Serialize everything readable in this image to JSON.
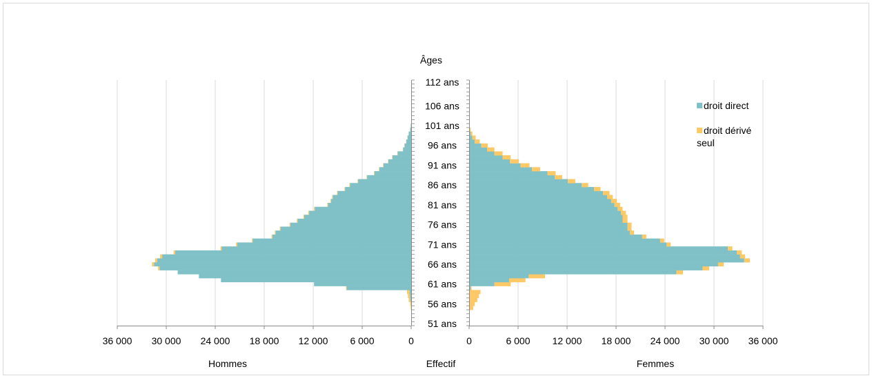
{
  "chart_data": {
    "type": "bar",
    "orientation": "horizontal",
    "subtype": "population-pyramid",
    "title": "Âges",
    "xlabel": "Effectif",
    "left_label": "Hommes",
    "right_label": "Femmes",
    "age_tick_labels": [
      "112 ans",
      "106 ans",
      "101 ans",
      "96 ans",
      "91 ans",
      "86 ans",
      "81 ans",
      "76 ans",
      "71 ans",
      "66 ans",
      "61 ans",
      "56 ans",
      "51 ans"
    ],
    "xticks": [
      "36 000",
      "30 000",
      "24 000",
      "18 000",
      "12 000",
      "6 000",
      "0"
    ],
    "xlim": [
      0,
      36000
    ],
    "age_range": [
      51,
      112
    ],
    "legend_position": "right",
    "colors": {
      "droit direct": "#80c1c8",
      "droit dérivé seul": "#fcc966"
    },
    "series": [
      {
        "name": "droit direct",
        "ages": [
          55,
          56,
          57,
          58,
          59,
          60,
          61,
          62,
          63,
          64,
          65,
          66,
          67,
          68,
          69,
          70,
          71,
          72,
          73,
          74,
          75,
          76,
          77,
          78,
          79,
          80,
          81,
          82,
          83,
          84,
          85,
          86,
          87,
          88,
          89,
          90,
          91,
          92,
          93,
          94,
          95,
          96,
          97,
          98,
          99,
          100,
          101
        ],
        "men": [
          0,
          0,
          100,
          150,
          200,
          7900,
          11900,
          23300,
          26000,
          28600,
          30800,
          31500,
          31100,
          30500,
          28900,
          23200,
          21300,
          19400,
          17000,
          16600,
          16000,
          14800,
          13900,
          13100,
          12500,
          11800,
          10200,
          9800,
          9600,
          9000,
          8100,
          7500,
          6500,
          5400,
          4500,
          3900,
          3400,
          2800,
          2300,
          1650,
          1000,
          800,
          600,
          450,
          300,
          120,
          50
        ],
        "women": [
          0,
          0,
          0,
          0,
          0,
          200,
          3100,
          4900,
          7300,
          25400,
          28600,
          30500,
          33700,
          33200,
          32800,
          31700,
          24200,
          23400,
          21200,
          19700,
          19400,
          19400,
          18800,
          18800,
          18600,
          18200,
          17800,
          17400,
          16900,
          16400,
          15300,
          13800,
          12100,
          10500,
          9600,
          7700,
          6300,
          5000,
          4100,
          3100,
          2200,
          1500,
          700,
          400,
          200,
          100,
          40
        ]
      },
      {
        "name": "droit dérivé seul",
        "ages": [
          55,
          56,
          57,
          58,
          59,
          60,
          61,
          62,
          63,
          64,
          65,
          66,
          67,
          68,
          69,
          70,
          71,
          72,
          73,
          74,
          75,
          76,
          77,
          78,
          79,
          80,
          81,
          82,
          83,
          84,
          85,
          86,
          87,
          88,
          89,
          90,
          91,
          92,
          93,
          94,
          95,
          96,
          97,
          98,
          99,
          100,
          101
        ],
        "men": [
          50,
          120,
          200,
          250,
          300,
          80,
          0,
          0,
          0,
          0,
          200,
          250,
          250,
          250,
          200,
          160,
          150,
          100,
          100,
          100,
          100,
          100,
          100,
          100,
          100,
          100,
          80,
          80,
          80,
          80,
          70,
          70,
          60,
          60,
          60,
          50,
          50,
          40,
          40,
          40,
          30,
          30,
          20,
          20,
          10,
          10,
          5
        ],
        "women": [
          500,
          700,
          1000,
          1200,
          1400,
          100,
          2000,
          2000,
          2000,
          800,
          800,
          700,
          700,
          600,
          600,
          550,
          500,
          500,
          500,
          500,
          500,
          500,
          600,
          600,
          600,
          600,
          700,
          700,
          700,
          800,
          800,
          800,
          900,
          900,
          1000,
          1000,
          1100,
          1100,
          1000,
          1000,
          900,
          800,
          600,
          400,
          200,
          100,
          40
        ]
      }
    ]
  }
}
